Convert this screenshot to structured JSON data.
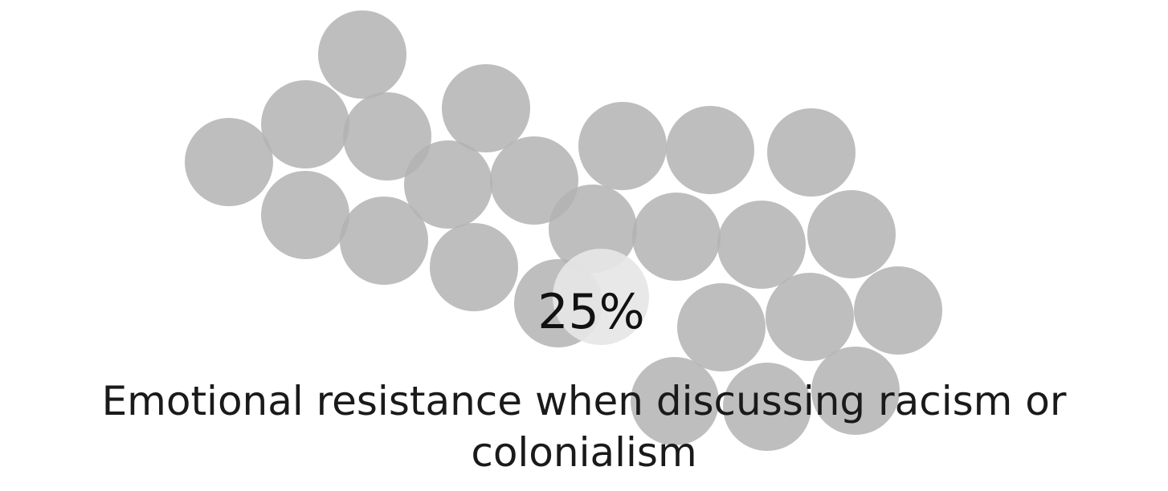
{
  "chart_data": {
    "type": "bubble-cluster",
    "value_text": "25%",
    "value": 25,
    "label": "Emotional resistance when discussing racism or colonialism",
    "bubble_color": "#b3b3b3",
    "highlight_color": "#e6e6e6"
  }
}
